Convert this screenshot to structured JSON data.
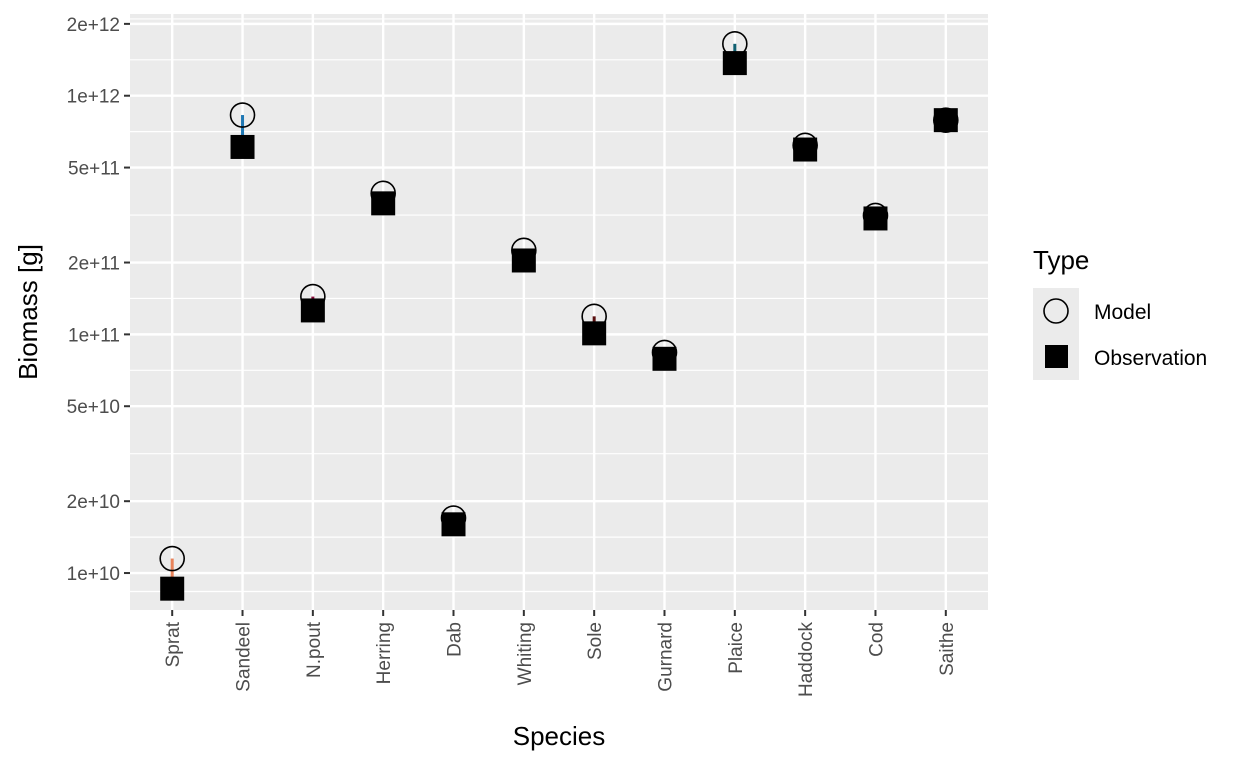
{
  "chart_data": {
    "type": "scatter",
    "title": "",
    "xlabel": "Species",
    "ylabel": "Biomass [g]",
    "y_scale": "log10",
    "ylim": [
      7000000000,
      2200000000000
    ],
    "y_ticks": [
      10000000000,
      20000000000,
      50000000000,
      100000000000,
      200000000000,
      500000000000,
      1000000000000,
      2000000000000
    ],
    "y_tick_labels": [
      "1e+10",
      "2e+10",
      "5e+10",
      "1e+11",
      "2e+11",
      "5e+11",
      "1e+12",
      "2e+12"
    ],
    "grid": true,
    "categories": [
      "Sprat",
      "Sandeel",
      "N.pout",
      "Herring",
      "Dab",
      "Whiting",
      "Sole",
      "Gurnard",
      "Plaice",
      "Haddock",
      "Cod",
      "Saithe"
    ],
    "species_colors": [
      "#e8835a",
      "#1f78b4",
      "#8b0a3a",
      "#a99bd6",
      "#4a4a1a",
      "#b7a0d0",
      "#5a1010",
      "#f08080",
      "#106070",
      "#707070",
      "#c08040",
      "#3b3bd0"
    ],
    "legend": {
      "title": "Type",
      "position": "right",
      "entries": [
        {
          "label": "Model",
          "marker": "open-circle"
        },
        {
          "label": "Observation",
          "marker": "filled-square"
        }
      ]
    },
    "series": [
      {
        "name": "Model",
        "marker": "open-circle",
        "values": [
          11500000000,
          830000000000,
          144000000000,
          390000000000,
          17000000000,
          225000000000,
          119000000000,
          84000000000,
          1650000000000,
          620000000000,
          315000000000,
          790000000000
        ]
      },
      {
        "name": "Observation",
        "marker": "filled-square",
        "values": [
          8600000000,
          610000000000,
          126000000000,
          354000000000,
          16000000000,
          204000000000,
          101000000000,
          79000000000,
          1370000000000,
          595000000000,
          306000000000,
          790000000000
        ]
      }
    ]
  }
}
